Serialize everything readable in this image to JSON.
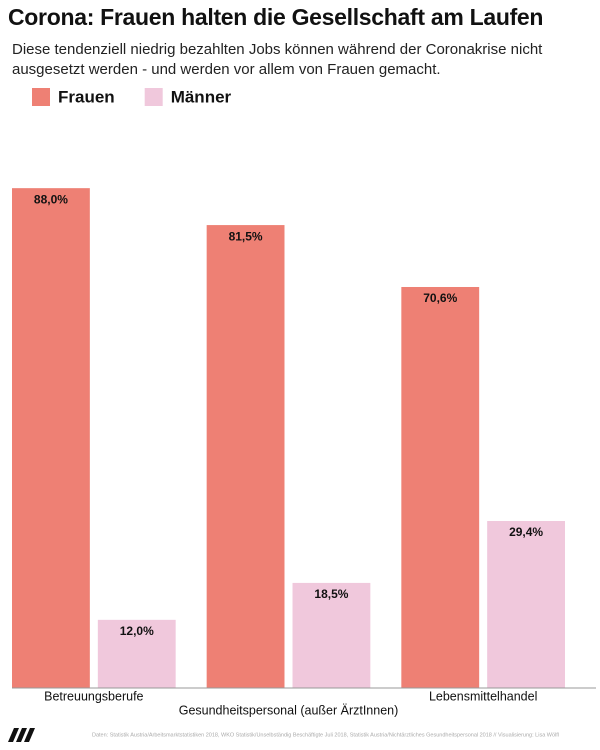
{
  "chart_data": {
    "type": "grouped-bar",
    "title": "Corona: Frauen halten die Gesellschaft am Laufen",
    "subtitle": "Diese tendenziell niedrig bezahlten Jobs können während der Coronakrise nicht ausgesetzt werden - und werden vor allem von Frauen gemacht.",
    "categories": [
      "Betreuungsberufe",
      "Gesundheitspersonal (außer ÄrztInnen)",
      "Lebensmittelhandel"
    ],
    "series": [
      {
        "name": "Frauen",
        "color": "#ee8074",
        "values": [
          88.0,
          81.5,
          70.6
        ],
        "value_labels": [
          "88,0%",
          "81,5%",
          "70,6%"
        ]
      },
      {
        "name": "Männer",
        "color": "#f0c8dc",
        "values": [
          12.0,
          18.5,
          29.4
        ],
        "value_labels": [
          "12,0%",
          "18,5%",
          "29,4%"
        ]
      }
    ],
    "ylim": [
      0,
      100
    ],
    "source": "Daten: Statistik Austria/Arbeitsmarktstatistiken 2018, WKO Statistik/Unselbständig Beschäftigte Juli 2018, Statistik Austria/Nichtärztliches Gesundheitspersonal 2018 // Visualisierung: Lisa Wölfl"
  }
}
